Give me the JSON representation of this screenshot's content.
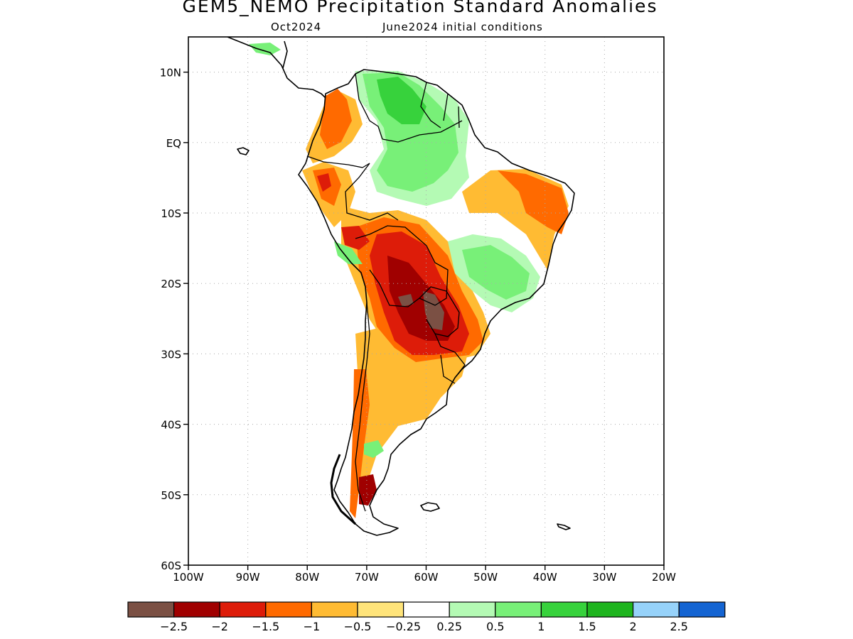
{
  "title": "GEM5_NEMO Precipitation Standard Anomalies",
  "subtitle_left": "Oct2024",
  "subtitle_right": "June2024 initial conditions",
  "map": {
    "lon_range": [
      -100,
      -20
    ],
    "lat_range": [
      -60,
      15
    ],
    "lat_labels": [
      "10N",
      "EQ",
      "10S",
      "20S",
      "30S",
      "40S",
      "50S",
      "60S"
    ],
    "lat_values": [
      10,
      0,
      -10,
      -20,
      -30,
      -40,
      -50,
      -60
    ],
    "lon_labels": [
      "100W",
      "90W",
      "80W",
      "70W",
      "60W",
      "50W",
      "40W",
      "30W",
      "20W"
    ],
    "lon_values": [
      -100,
      -90,
      -80,
      -70,
      -60,
      -50,
      -40,
      -30,
      -20
    ]
  },
  "colorbar": {
    "labels": [
      "−2.5",
      "−2",
      "−1.5",
      "−1",
      "−0.5",
      "−0.25",
      "0.25",
      "0.5",
      "1",
      "1.5",
      "2",
      "2.5"
    ],
    "colors": [
      "#7b5044",
      "#a00000",
      "#dd1c09",
      "#ff6a00",
      "#ffbb33",
      "#ffe47a",
      "#ffffff",
      "#b4fab4",
      "#78f078",
      "#37d23c",
      "#1eb41e",
      "#96d2fa",
      "#1464d2"
    ]
  },
  "colors": {
    "brown": "#7b5044",
    "darkred": "#a00000",
    "red": "#dd1c09",
    "orange": "#ff6a00",
    "lightorange": "#ffbb33",
    "yellow": "#ffe47a",
    "lightgreen": "#b4fab4",
    "green": "#78f078",
    "midgreen": "#37d23c",
    "darkgreen": "#1eb41e"
  }
}
